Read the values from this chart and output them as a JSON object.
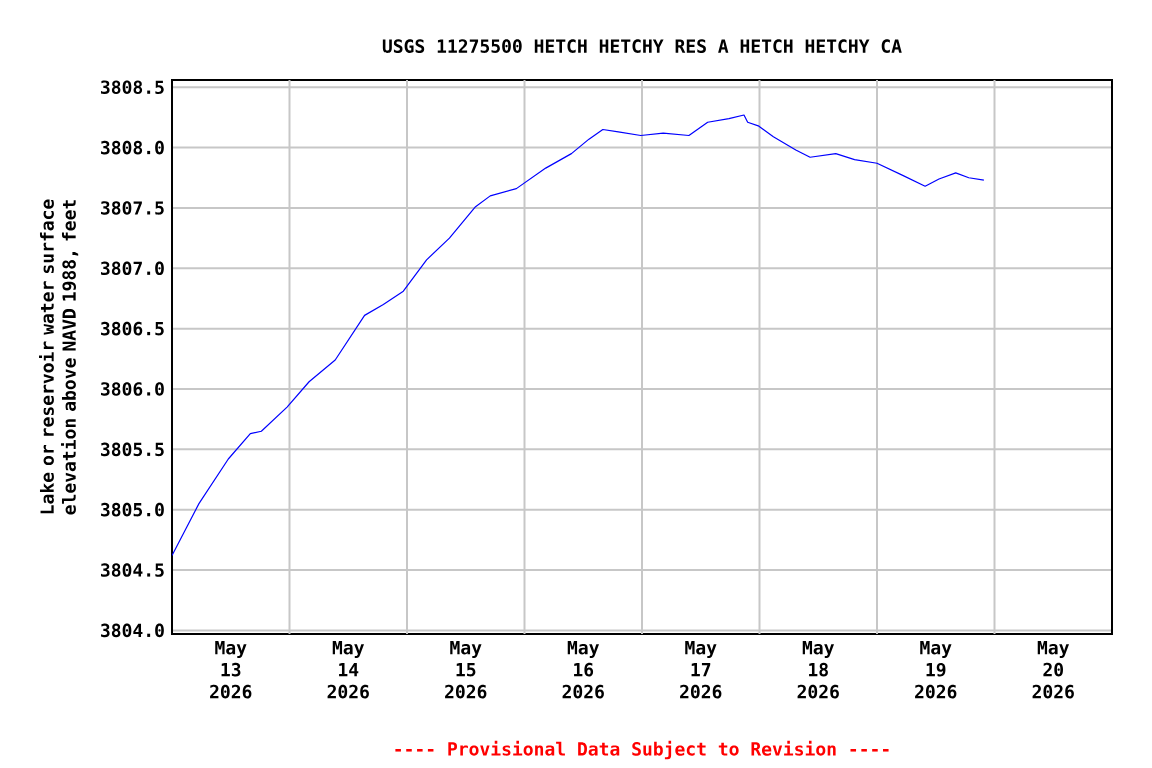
{
  "chart_data": {
    "type": "line",
    "title": "USGS 11275500 HETCH HETCHY RES A HETCH HETCHY CA",
    "ylabel": "Lake or reservoir water surface elevation above NAVD 1988, feet",
    "annotations": [
      "---- Provisional Data Subject to Revision ----"
    ],
    "xlim": [
      "2026-05-13T00:00",
      "2026-05-21T00:00"
    ],
    "xticks": [
      {
        "value": "2026-05-13T12:00",
        "label": "May 13 2026"
      },
      {
        "value": "2026-05-14T12:00",
        "label": "May 14 2026"
      },
      {
        "value": "2026-05-15T12:00",
        "label": "May 15 2026"
      },
      {
        "value": "2026-05-16T12:00",
        "label": "May 16 2026"
      },
      {
        "value": "2026-05-17T12:00",
        "label": "May 17 2026"
      },
      {
        "value": "2026-05-18T12:00",
        "label": "May 18 2026"
      },
      {
        "value": "2026-05-19T12:00",
        "label": "May 19 2026"
      },
      {
        "value": "2026-05-20T12:00",
        "label": "May 20 2026"
      },
      {
        "value": "2026-05-14T00:00",
        "label": null
      },
      {
        "value": "2026-05-15T00:00",
        "label": null
      },
      {
        "value": "2026-05-16T00:00",
        "label": null
      },
      {
        "value": "2026-05-17T00:00",
        "label": null
      },
      {
        "value": "2026-05-18T00:00",
        "label": null
      },
      {
        "value": "2026-05-19T00:00",
        "label": null
      },
      {
        "value": "2026-05-20T00:00",
        "label": null
      }
    ],
    "ylim": [
      3803.97,
      3808.56
    ],
    "yticks": [
      {
        "value": 3804,
        "label": "3804.0"
      },
      3804.5,
      {
        "value": 3805,
        "label": "3805.0"
      },
      3805.5,
      {
        "value": 3806,
        "label": "3806.0"
      },
      3806.5,
      {
        "value": 3807,
        "label": "3807.0"
      },
      3807.5,
      {
        "value": 3808,
        "label": "3808.0"
      },
      3808.5
    ],
    "grid": true,
    "x": [
      "2026-05-13T00:00",
      "2026-05-13T05:30",
      "2026-05-13T11:30",
      "2026-05-13T16:00",
      "2026-05-13T18:15",
      "2026-05-13T23:30",
      "2026-05-14T04:00",
      "2026-05-14T09:20",
      "2026-05-14T15:20",
      "2026-05-14T19:10",
      "2026-05-14T23:15",
      "2026-05-15T04:00",
      "2026-05-15T08:40",
      "2026-05-15T14:00",
      "2026-05-15T17:00",
      "2026-05-15T22:20",
      "2026-05-16T04:20",
      "2026-05-16T09:35",
      "2026-05-16T13:10",
      "2026-05-16T16:00",
      "2026-05-16T19:10",
      "2026-05-16T23:45",
      "2026-05-17T04:20",
      "2026-05-17T09:35",
      "2026-05-17T13:25",
      "2026-05-17T17:45",
      "2026-05-17T20:50",
      "2026-05-17T21:35",
      "2026-05-17T23:45",
      "2026-05-18T02:50",
      "2026-05-18T07:25",
      "2026-05-18T10:20",
      "2026-05-18T15:35",
      "2026-05-18T19:25",
      "2026-05-19T00:00",
      "2026-05-19T05:15",
      "2026-05-19T09:50",
      "2026-05-19T12:40",
      "2026-05-19T16:05",
      "2026-05-19T18:45",
      "2026-05-19T21:50"
    ],
    "series": [
      {
        "color": "#0000ff",
        "values": [
          3804.62,
          3805.05,
          3805.42,
          3805.63,
          3805.65,
          3805.85,
          3806.06,
          3806.24,
          3806.61,
          3806.7,
          3806.81,
          3807.07,
          3807.25,
          3807.51,
          3807.6,
          3807.66,
          3807.83,
          3807.95,
          3808.07,
          3808.15,
          3808.13,
          3808.1,
          3808.12,
          3808.1,
          3808.21,
          3808.24,
          3808.27,
          3808.21,
          3808.18,
          3808.09,
          3807.98,
          3807.92,
          3807.95,
          3807.9,
          3807.87,
          3807.77,
          3807.68,
          3807.74,
          3807.79,
          3807.75,
          3807.73
        ]
      }
    ]
  }
}
